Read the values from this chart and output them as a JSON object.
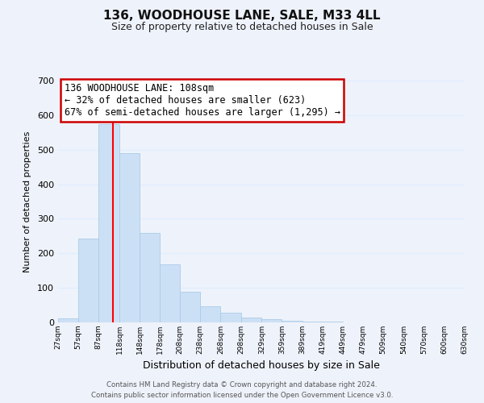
{
  "title": "136, WOODHOUSE LANE, SALE, M33 4LL",
  "subtitle": "Size of property relative to detached houses in Sale",
  "xlabel": "Distribution of detached houses by size in Sale",
  "ylabel": "Number of detached properties",
  "bar_color": "#cce0f5",
  "bar_edge_color": "#aacce8",
  "bins": [
    27,
    57,
    87,
    118,
    148,
    178,
    208,
    238,
    268,
    298,
    329,
    359,
    389,
    419,
    449,
    479,
    509,
    540,
    570,
    600,
    630
  ],
  "bin_labels": [
    "27sqm",
    "57sqm",
    "87sqm",
    "118sqm",
    "148sqm",
    "178sqm",
    "208sqm",
    "238sqm",
    "268sqm",
    "298sqm",
    "329sqm",
    "359sqm",
    "389sqm",
    "419sqm",
    "449sqm",
    "479sqm",
    "509sqm",
    "540sqm",
    "570sqm",
    "600sqm",
    "630sqm"
  ],
  "bar_heights": [
    12,
    243,
    575,
    490,
    258,
    168,
    88,
    47,
    27,
    13,
    10,
    5,
    3,
    2,
    1,
    0,
    0,
    0,
    0,
    0
  ],
  "property_line_x": 108,
  "ylim": [
    0,
    700
  ],
  "yticks": [
    0,
    100,
    200,
    300,
    400,
    500,
    600,
    700
  ],
  "annotation_text": "136 WOODHOUSE LANE: 108sqm\n← 32% of detached houses are smaller (623)\n67% of semi-detached houses are larger (1,295) →",
  "annotation_box_color": "#ffffff",
  "annotation_box_edge": "#cc0000",
  "footer1": "Contains HM Land Registry data © Crown copyright and database right 2024.",
  "footer2": "Contains public sector information licensed under the Open Government Licence v3.0.",
  "grid_color": "#ddeeff",
  "background_color": "#eef2fa",
  "title_fontsize": 11,
  "subtitle_fontsize": 9,
  "ylabel_fontsize": 8,
  "xlabel_fontsize": 9
}
